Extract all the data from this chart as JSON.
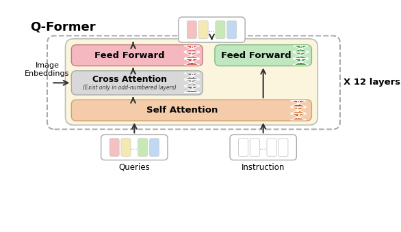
{
  "figsize": [
    5.86,
    3.4
  ],
  "dpi": 100,
  "title": "Q-Former",
  "x12_label": "X 12 layers",
  "image_label": "Image\nEnbeddings",
  "queries_label": "Queries",
  "instruction_label": "Instruction",
  "cross_sublabel": "(Exist only in odd-numbered layers)",
  "token_colors_queries": [
    "#f5c0c0",
    "#f5e8b0",
    "#c8e8b8",
    "#c0d8f0"
  ],
  "token_colors_qformer": [
    "#f5c0c0",
    "#f5e8b0",
    "#c8e8b8",
    "#c0d8f0"
  ],
  "colors": {
    "outer_dash": "#aaaaaa",
    "inner_fill": "#faf5dc",
    "inner_edge": "#bbbbbb",
    "self_attn_fill": "#f5ccaa",
    "self_attn_edge": "#d4a070",
    "cross_attn_fill": "#d8d8d8",
    "cross_attn_edge": "#aaaaaa",
    "ff1_fill": "#f5b8c0",
    "ff1_edge": "#c08080",
    "ff2_fill": "#c0e8c0",
    "ff2_edge": "#80b880",
    "bea_pink": [
      "#d04040",
      "#e06060",
      "#c03030"
    ],
    "bea_green": [
      "#208020",
      "#40a840",
      "#208020"
    ],
    "bea_orange": [
      "#c05010",
      "#e07830",
      "#c05010"
    ],
    "bea_gray": [
      "#606060",
      "#909090",
      "#606060"
    ]
  }
}
